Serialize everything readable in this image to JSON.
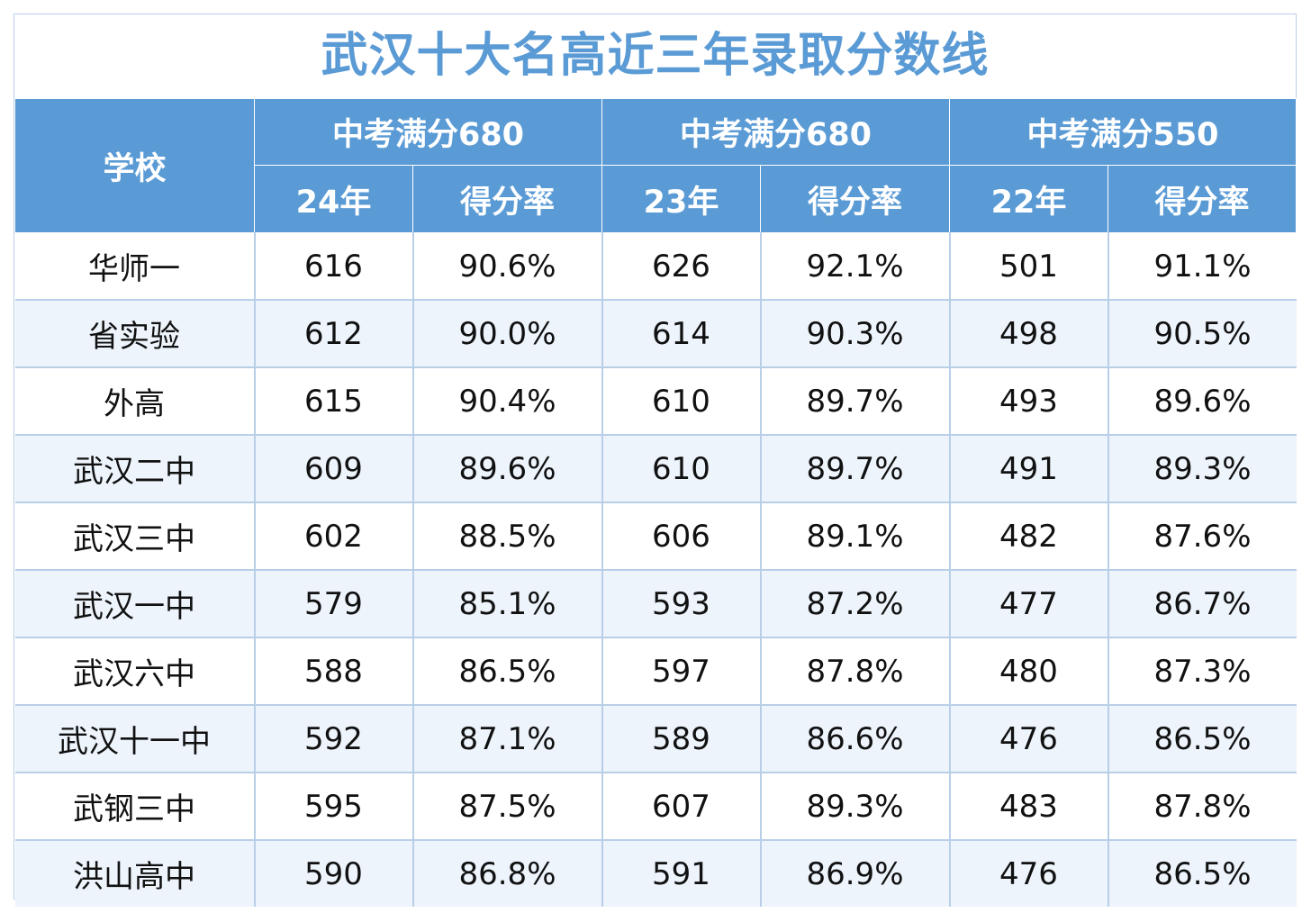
{
  "title": "武汉十大名高近三年录取分数线",
  "header": {
    "school": "学校",
    "groups": [
      {
        "label": "中考满分680",
        "year": "24年",
        "rate": "得分率"
      },
      {
        "label": "中考满分680",
        "year": "23年",
        "rate": "得分率"
      },
      {
        "label": "中考满分550",
        "year": "22年",
        "rate": "得分率"
      }
    ]
  },
  "rows": [
    {
      "school": "华师一",
      "s24": "616",
      "r24": "90.6%",
      "s23": "626",
      "r23": "92.1%",
      "s22": "501",
      "r22": "91.1%"
    },
    {
      "school": "省实验",
      "s24": "612",
      "r24": "90.0%",
      "s23": "614",
      "r23": "90.3%",
      "s22": "498",
      "r22": "90.5%"
    },
    {
      "school": "外高",
      "s24": "615",
      "r24": "90.4%",
      "s23": "610",
      "r23": "89.7%",
      "s22": "493",
      "r22": "89.6%"
    },
    {
      "school": "武汉二中",
      "s24": "609",
      "r24": "89.6%",
      "s23": "610",
      "r23": "89.7%",
      "s22": "491",
      "r22": "89.3%"
    },
    {
      "school": "武汉三中",
      "s24": "602",
      "r24": "88.5%",
      "s23": "606",
      "r23": "89.1%",
      "s22": "482",
      "r22": "87.6%"
    },
    {
      "school": "武汉一中",
      "s24": "579",
      "r24": "85.1%",
      "s23": "593",
      "r23": "87.2%",
      "s22": "477",
      "r22": "86.7%"
    },
    {
      "school": "武汉六中",
      "s24": "588",
      "r24": "86.5%",
      "s23": "597",
      "r23": "87.8%",
      "s22": "480",
      "r22": "87.3%"
    },
    {
      "school": "武汉十一中",
      "s24": "592",
      "r24": "87.1%",
      "s23": "589",
      "r23": "86.6%",
      "s22": "476",
      "r22": "86.5%"
    },
    {
      "school": "武钢三中",
      "s24": "595",
      "r24": "87.5%",
      "s23": "607",
      "r23": "89.3%",
      "s22": "483",
      "r22": "87.8%"
    },
    {
      "school": "洪山高中",
      "s24": "590",
      "r24": "86.8%",
      "s23": "591",
      "r23": "86.9%",
      "s22": "476",
      "r22": "86.5%"
    }
  ],
  "colors": {
    "accent": "#5b9bd5",
    "row_alt": "#edf4fc",
    "grid": "#b9cfe8"
  }
}
